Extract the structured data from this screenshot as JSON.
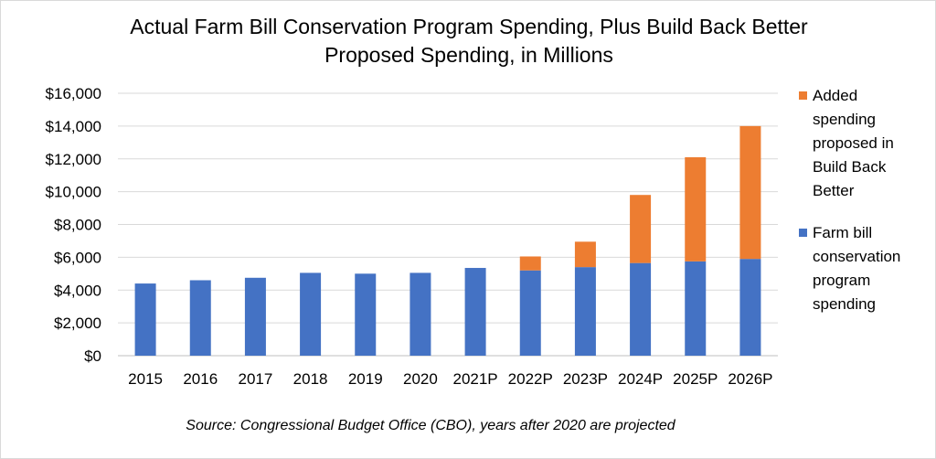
{
  "chart_data": {
    "type": "bar",
    "stacked": true,
    "title_lines": [
      "Actual Farm Bill Conservation Program Spending, Plus Build Back Better",
      "Proposed Spending, in Millions"
    ],
    "categories": [
      "2015",
      "2016",
      "2017",
      "2018",
      "2019",
      "2020",
      "2021P",
      "2022P",
      "2023P",
      "2024P",
      "2025P",
      "2026P"
    ],
    "series": [
      {
        "name": "Farm bill conservation program spending",
        "legend_lines": [
          "Farm bill",
          "conservation",
          "program",
          "spending"
        ],
        "color": "#4472c4",
        "values": [
          4400,
          4600,
          4750,
          5050,
          5000,
          5050,
          5350,
          5200,
          5400,
          5650,
          5750,
          5900
        ]
      },
      {
        "name": "Added spending proposed in Build Back Better",
        "legend_lines": [
          "Added",
          "spending",
          "proposed in",
          "Build Back",
          "Better"
        ],
        "color": "#ed7d31",
        "values": [
          0,
          0,
          0,
          0,
          0,
          0,
          0,
          850,
          1550,
          4150,
          6350,
          8100
        ]
      }
    ],
    "y_ticks": [
      "$0",
      "$2,000",
      "$4,000",
      "$6,000",
      "$8,000",
      "$10,000",
      "$12,000",
      "$14,000",
      "$16,000"
    ],
    "ylim": [
      0,
      16000
    ],
    "grid": true,
    "legend_position": "right",
    "source": "Source:  Congressional Budget Office (CBO), years after 2020 are projected"
  }
}
